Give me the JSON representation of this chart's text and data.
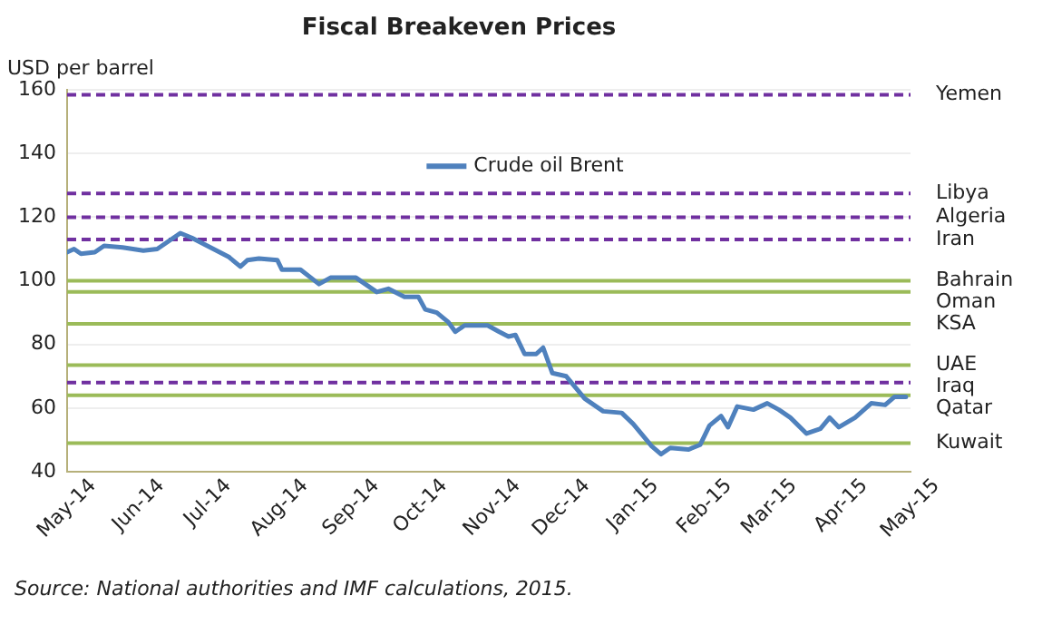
{
  "chart_data": {
    "type": "line",
    "title": "Fiscal Breakeven Prices",
    "ylabel": "USD per barrel",
    "annotations": [
      "Source:  National authorities and IMF calculations, 2015."
    ],
    "x": [
      "2014-05-01",
      "2014-05-04",
      "2014-05-07",
      "2014-05-13",
      "2014-05-17",
      "2014-05-25",
      "2014-06-03",
      "2014-06-09",
      "2014-06-13",
      "2014-06-19",
      "2014-06-24",
      "2014-07-02",
      "2014-07-10",
      "2014-07-15",
      "2014-07-18",
      "2014-07-23",
      "2014-07-31",
      "2014-08-02",
      "2014-08-10",
      "2014-08-18",
      "2014-08-23",
      "2014-09-03",
      "2014-09-08",
      "2014-09-12",
      "2014-09-17",
      "2014-09-24",
      "2014-09-30",
      "2014-10-03",
      "2014-10-08",
      "2014-10-13",
      "2014-10-16",
      "2014-10-20",
      "2014-10-30",
      "2014-11-04",
      "2014-11-08",
      "2014-11-11",
      "2014-11-15",
      "2014-11-20",
      "2014-11-23",
      "2014-11-27",
      "2014-12-03",
      "2014-12-11",
      "2014-12-19",
      "2014-12-27",
      "2015-01-01",
      "2015-01-09",
      "2015-01-13",
      "2015-01-17",
      "2015-01-25",
      "2015-01-30",
      "2015-02-03",
      "2015-02-08",
      "2015-02-11",
      "2015-02-15",
      "2015-02-22",
      "2015-02-28",
      "2015-03-05",
      "2015-03-10",
      "2015-03-17",
      "2015-03-23",
      "2015-03-27",
      "2015-03-31",
      "2015-04-07",
      "2015-04-14",
      "2015-04-20",
      "2015-04-24",
      "2015-04-29"
    ],
    "series": [
      {
        "name": "Crude oil Brent",
        "color": "#4f81bd",
        "values": [
          109,
          110,
          108.5,
          109,
          111,
          110.5,
          109.5,
          110,
          112,
          115,
          113.5,
          110.5,
          107.5,
          104.5,
          106.5,
          107,
          106.5,
          103.5,
          103.5,
          99,
          101,
          101,
          98.5,
          96.5,
          97.5,
          95,
          95,
          91,
          90,
          87,
          84,
          86,
          86,
          84,
          82.5,
          83,
          77,
          77,
          79,
          71,
          70,
          63,
          59,
          58.5,
          55,
          48,
          45.5,
          47.5,
          47,
          48.5,
          54.5,
          57.5,
          54,
          60.5,
          59.5,
          61.5,
          59.5,
          57,
          52,
          53.5,
          57,
          54,
          57,
          61.5,
          61,
          63.5,
          63.5
        ]
      }
    ],
    "xlim": [
      "2014-05-01",
      "2015-05-01"
    ],
    "xticks": [
      {
        "value": "2014-05-01",
        "label": "May-14"
      },
      {
        "value": "2014-06-01",
        "label": "Jun-14"
      },
      {
        "value": "2014-07-01",
        "label": "Jul-14"
      },
      {
        "value": "2014-08-01",
        "label": "Aug-14"
      },
      {
        "value": "2014-09-01",
        "label": "Sep-14"
      },
      {
        "value": "2014-10-01",
        "label": "Oct-14"
      },
      {
        "value": "2014-11-01",
        "label": "Nov-14"
      },
      {
        "value": "2014-12-01",
        "label": "Dec-14"
      },
      {
        "value": "2015-01-01",
        "label": "Jan-15"
      },
      {
        "value": "2015-02-01",
        "label": "Feb-15"
      },
      {
        "value": "2015-03-01",
        "label": "Mar-15"
      },
      {
        "value": "2015-04-01",
        "label": "Apr-15"
      },
      {
        "value": "2015-05-01",
        "label": "May-15"
      }
    ],
    "ylim": [
      40,
      160
    ],
    "yticks": [
      40,
      60,
      80,
      100,
      120,
      140,
      160
    ],
    "ref_lines": [
      {
        "axis": "y",
        "value": 158.5,
        "label": "Yemen",
        "color": "#7030a0",
        "line_style": "dashed"
      },
      {
        "axis": "y",
        "value": 127.5,
        "label": "Libya",
        "color": "#7030a0",
        "line_style": "dashed"
      },
      {
        "axis": "y",
        "value": 120,
        "label": "Algeria",
        "color": "#7030a0",
        "line_style": "dashed"
      },
      {
        "axis": "y",
        "value": 113,
        "label": "Iran",
        "color": "#7030a0",
        "line_style": "dashed"
      },
      {
        "axis": "y",
        "value": 100,
        "label": "Bahrain",
        "color": "#9bbb59",
        "line_style": "solid"
      },
      {
        "axis": "y",
        "value": 96.5,
        "label": "Oman",
        "color": "#9bbb59",
        "line_style": "solid"
      },
      {
        "axis": "y",
        "value": 86.5,
        "label": "KSA",
        "color": "#9bbb59",
        "line_style": "solid"
      },
      {
        "axis": "y",
        "value": 73.5,
        "label": "UAE",
        "color": "#9bbb59",
        "line_style": "solid"
      },
      {
        "axis": "y",
        "value": 68,
        "label": "Iraq",
        "color": "#7030a0",
        "line_style": "dashed"
      },
      {
        "axis": "y",
        "value": 64,
        "label": "Qatar",
        "color": "#9bbb59",
        "line_style": "solid"
      },
      {
        "axis": "y",
        "value": 49,
        "label": "Kuwait",
        "color": "#9bbb59",
        "line_style": "solid"
      }
    ],
    "grid": "y",
    "legend": "top",
    "marker": "none",
    "line_style": "solid"
  }
}
